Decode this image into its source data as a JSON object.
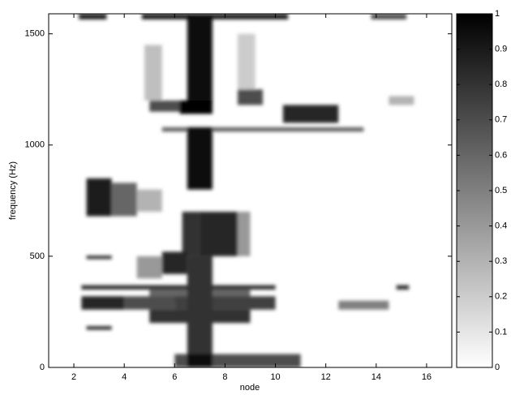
{
  "chart_data": {
    "type": "heatmap",
    "x_label": "node",
    "y_label": "frequency (Hz)",
    "xlim": [
      1,
      17
    ],
    "ylim": [
      0,
      1590
    ],
    "xticks": [
      2,
      4,
      6,
      8,
      10,
      12,
      14,
      16
    ],
    "yticks": [
      0,
      500,
      1000,
      1500
    ],
    "colorbar": {
      "lim": [
        0,
        1
      ],
      "ticks": [
        0,
        0.1,
        0.2,
        0.3,
        0.4,
        0.5,
        0.6,
        0.7,
        0.8,
        0.9,
        1
      ]
    },
    "colormap": [
      "#ffffff",
      "#000000"
    ],
    "cells": [
      {
        "x0": 4.8,
        "x1": 5.5,
        "f0": 1200,
        "f1": 1450,
        "value": 0.25
      },
      {
        "x0": 8.5,
        "x1": 9.2,
        "f0": 1250,
        "f1": 1500,
        "value": 0.2
      },
      {
        "x0": 2.2,
        "x1": 3.3,
        "f0": 1565,
        "f1": 1590,
        "value": 0.9
      },
      {
        "x0": 4.7,
        "x1": 10.5,
        "f0": 1565,
        "f1": 1590,
        "value": 0.9
      },
      {
        "x0": 13.8,
        "x1": 15.2,
        "f0": 1565,
        "f1": 1590,
        "value": 0.7
      },
      {
        "x0": 5.0,
        "x1": 6.5,
        "f0": 1150,
        "f1": 1200,
        "value": 0.7
      },
      {
        "x0": 8.5,
        "x1": 9.5,
        "f0": 1180,
        "f1": 1250,
        "value": 0.7
      },
      {
        "x0": 14.5,
        "x1": 15.5,
        "f0": 1180,
        "f1": 1220,
        "value": 0.3
      },
      {
        "x0": 10.3,
        "x1": 12.5,
        "f0": 1100,
        "f1": 1180,
        "value": 0.85
      },
      {
        "x0": 5.5,
        "x1": 13.5,
        "f0": 1060,
        "f1": 1080,
        "value": 0.6
      },
      {
        "x0": 6.5,
        "x1": 7.5,
        "f0": 1180,
        "f1": 1590,
        "value": 0.95
      },
      {
        "x0": 6.5,
        "x1": 7.5,
        "f0": 800,
        "f1": 1080,
        "value": 0.95
      },
      {
        "x0": 6.2,
        "x1": 7.5,
        "f0": 1140,
        "f1": 1200,
        "value": 1
      },
      {
        "x0": 2.5,
        "x1": 3.5,
        "f0": 680,
        "f1": 850,
        "value": 0.9
      },
      {
        "x0": 3.5,
        "x1": 4.5,
        "f0": 680,
        "f1": 830,
        "value": 0.6
      },
      {
        "x0": 4.5,
        "x1": 5.5,
        "f0": 700,
        "f1": 800,
        "value": 0.3
      },
      {
        "x0": 8.5,
        "x1": 9.0,
        "f0": 500,
        "f1": 700,
        "value": 0.4
      },
      {
        "x0": 6.3,
        "x1": 7.0,
        "f0": 500,
        "f1": 700,
        "value": 0.8
      },
      {
        "x0": 7.0,
        "x1": 8.5,
        "f0": 500,
        "f1": 700,
        "value": 0.85
      },
      {
        "x0": 4.5,
        "x1": 5.5,
        "f0": 400,
        "f1": 500,
        "value": 0.4
      },
      {
        "x0": 5.5,
        "x1": 6.5,
        "f0": 420,
        "f1": 520,
        "value": 0.85
      },
      {
        "x0": 2.5,
        "x1": 3.5,
        "f0": 488,
        "f1": 502,
        "value": 0.9
      },
      {
        "x0": 5.0,
        "x1": 9.0,
        "f0": 300,
        "f1": 350,
        "value": 0.6
      },
      {
        "x0": 2.3,
        "x1": 10.0,
        "f0": 350,
        "f1": 370,
        "value": 0.8
      },
      {
        "x0": 14.8,
        "x1": 15.3,
        "f0": 350,
        "f1": 370,
        "value": 0.8
      },
      {
        "x0": 2.3,
        "x1": 4.0,
        "f0": 260,
        "f1": 320,
        "value": 0.85
      },
      {
        "x0": 4.0,
        "x1": 6.0,
        "f0": 260,
        "f1": 320,
        "value": 0.7
      },
      {
        "x0": 6.0,
        "x1": 10.0,
        "f0": 260,
        "f1": 320,
        "value": 0.75
      },
      {
        "x0": 12.5,
        "x1": 14.5,
        "f0": 260,
        "f1": 300,
        "value": 0.5
      },
      {
        "x0": 5.0,
        "x1": 9.0,
        "f0": 200,
        "f1": 260,
        "value": 0.8
      },
      {
        "x0": 2.5,
        "x1": 3.5,
        "f0": 170,
        "f1": 185,
        "value": 0.9
      },
      {
        "x0": 6.5,
        "x1": 7.5,
        "f0": 0,
        "f1": 500,
        "value": 0.8
      },
      {
        "x0": 6.0,
        "x1": 11.0,
        "f0": 0,
        "f1": 60,
        "value": 0.7
      },
      {
        "x0": 6.5,
        "x1": 7.5,
        "f0": 0,
        "f1": 60,
        "value": 0.95
      }
    ]
  }
}
